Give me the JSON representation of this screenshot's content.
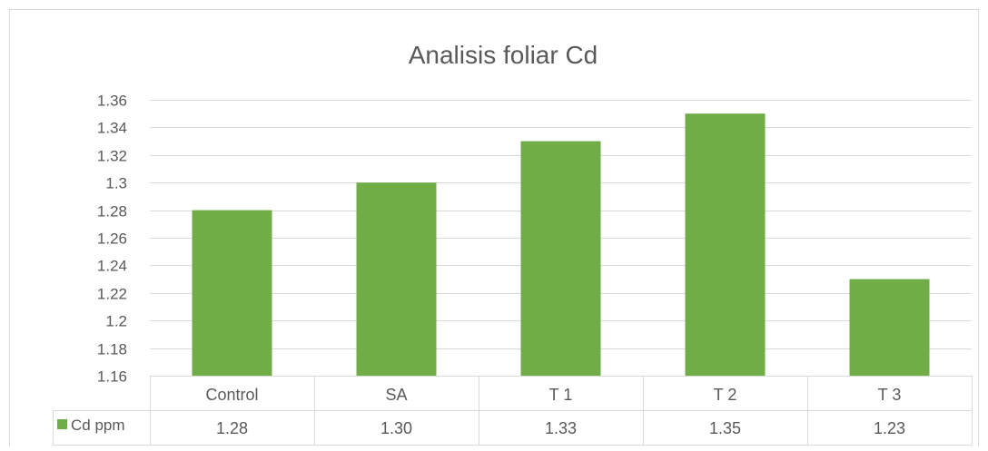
{
  "chart_data": {
    "type": "bar",
    "title": "Analisis foliar Cd",
    "categories": [
      "Control",
      "SA",
      "T 1",
      "T 2",
      "T 3"
    ],
    "series": [
      {
        "name": "Cd ppm",
        "values": [
          1.28,
          1.3,
          1.33,
          1.35,
          1.23
        ],
        "table_labels": [
          "1.28",
          "1.30",
          "1.33",
          "1.35",
          "1.23"
        ]
      }
    ],
    "ylim": [
      1.16,
      1.36
    ],
    "yticks": [
      "1.36",
      "1.34",
      "1.32",
      "1.3",
      "1.28",
      "1.26",
      "1.24",
      "1.22",
      "1.2",
      "1.18",
      "1.16"
    ],
    "ytick_values": [
      1.36,
      1.34,
      1.32,
      1.3,
      1.28,
      1.26,
      1.24,
      1.22,
      1.2,
      1.18,
      1.16
    ],
    "grid": true,
    "legend": "data-table",
    "colors": {
      "bar": "#70ad47",
      "grid": "#d9d9d9",
      "text": "#595959",
      "border": "#d9d9d9"
    }
  }
}
